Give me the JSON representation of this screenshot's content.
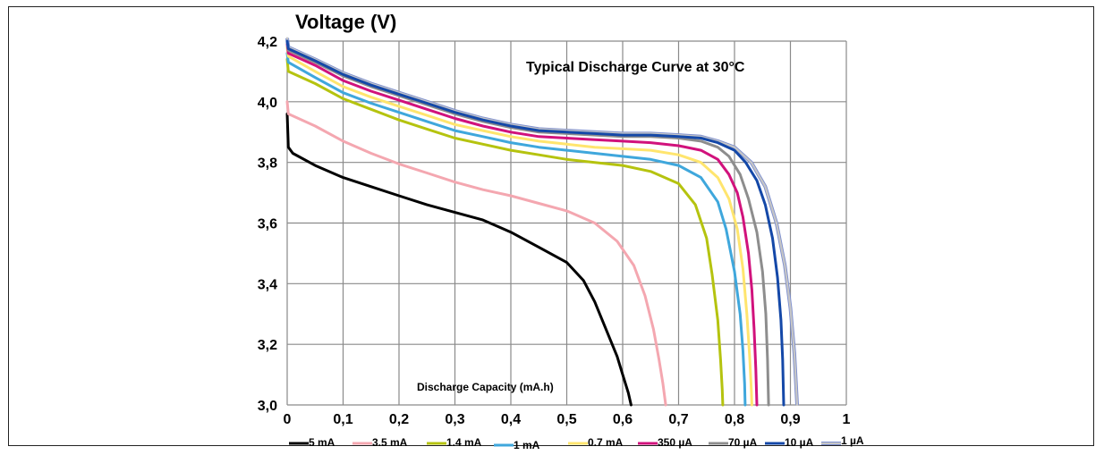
{
  "chart_data": {
    "type": "line",
    "title": "Typical Discharge Curve at 30°C",
    "ylabel": "Voltage (V)",
    "xlabel": "Discharge Capacity (mA.h)",
    "xlim": [
      0,
      1
    ],
    "ylim": [
      3.0,
      4.2
    ],
    "x_ticks": [
      "0",
      "0,1",
      "0,2",
      "0,3",
      "0,4",
      "0,5",
      "0,6",
      "0,7",
      "0,8",
      "0,9",
      "1"
    ],
    "y_ticks": [
      "3,0",
      "3,2",
      "3,4",
      "3,6",
      "3,8",
      "4,0",
      "4,2"
    ],
    "grid": true,
    "legend_position": "bottom",
    "series": [
      {
        "name": "5 mA",
        "color": "#000000",
        "points": [
          [
            0,
            3.96
          ],
          [
            0.002,
            3.85
          ],
          [
            0.01,
            3.83
          ],
          [
            0.05,
            3.79
          ],
          [
            0.1,
            3.75
          ],
          [
            0.15,
            3.72
          ],
          [
            0.2,
            3.69
          ],
          [
            0.25,
            3.66
          ],
          [
            0.3,
            3.635
          ],
          [
            0.35,
            3.61
          ],
          [
            0.4,
            3.57
          ],
          [
            0.45,
            3.52
          ],
          [
            0.5,
            3.47
          ],
          [
            0.53,
            3.41
          ],
          [
            0.55,
            3.34
          ],
          [
            0.57,
            3.25
          ],
          [
            0.59,
            3.16
          ],
          [
            0.6,
            3.1
          ],
          [
            0.61,
            3.04
          ],
          [
            0.615,
            3.0
          ]
        ]
      },
      {
        "name": "3.5 mA",
        "color": "#f4a7b0",
        "points": [
          [
            0,
            4.0
          ],
          [
            0.002,
            3.96
          ],
          [
            0.05,
            3.92
          ],
          [
            0.1,
            3.87
          ],
          [
            0.15,
            3.83
          ],
          [
            0.2,
            3.795
          ],
          [
            0.25,
            3.765
          ],
          [
            0.3,
            3.735
          ],
          [
            0.35,
            3.71
          ],
          [
            0.4,
            3.69
          ],
          [
            0.45,
            3.665
          ],
          [
            0.5,
            3.64
          ],
          [
            0.55,
            3.6
          ],
          [
            0.59,
            3.54
          ],
          [
            0.62,
            3.46
          ],
          [
            0.64,
            3.36
          ],
          [
            0.655,
            3.25
          ],
          [
            0.665,
            3.15
          ],
          [
            0.672,
            3.07
          ],
          [
            0.677,
            3.0
          ]
        ]
      },
      {
        "name": "1.4 mA",
        "color": "#b5c30f",
        "points": [
          [
            0,
            4.14
          ],
          [
            0.002,
            4.1
          ],
          [
            0.05,
            4.06
          ],
          [
            0.1,
            4.01
          ],
          [
            0.15,
            3.975
          ],
          [
            0.2,
            3.94
          ],
          [
            0.25,
            3.91
          ],
          [
            0.3,
            3.88
          ],
          [
            0.35,
            3.86
          ],
          [
            0.4,
            3.84
          ],
          [
            0.45,
            3.825
          ],
          [
            0.5,
            3.81
          ],
          [
            0.55,
            3.8
          ],
          [
            0.6,
            3.79
          ],
          [
            0.65,
            3.77
          ],
          [
            0.7,
            3.73
          ],
          [
            0.73,
            3.66
          ],
          [
            0.75,
            3.55
          ],
          [
            0.76,
            3.43
          ],
          [
            0.77,
            3.28
          ],
          [
            0.775,
            3.15
          ],
          [
            0.778,
            3.05
          ],
          [
            0.779,
            3.0
          ]
        ]
      },
      {
        "name": "1 mA",
        "color": "#3fa7dc",
        "points": [
          [
            0,
            4.16
          ],
          [
            0.002,
            4.13
          ],
          [
            0.05,
            4.08
          ],
          [
            0.1,
            4.03
          ],
          [
            0.15,
            3.995
          ],
          [
            0.2,
            3.965
          ],
          [
            0.25,
            3.935
          ],
          [
            0.3,
            3.905
          ],
          [
            0.35,
            3.885
          ],
          [
            0.4,
            3.865
          ],
          [
            0.45,
            3.85
          ],
          [
            0.5,
            3.84
          ],
          [
            0.55,
            3.83
          ],
          [
            0.6,
            3.82
          ],
          [
            0.65,
            3.81
          ],
          [
            0.7,
            3.79
          ],
          [
            0.74,
            3.75
          ],
          [
            0.77,
            3.67
          ],
          [
            0.785,
            3.58
          ],
          [
            0.8,
            3.44
          ],
          [
            0.81,
            3.3
          ],
          [
            0.815,
            3.18
          ],
          [
            0.818,
            3.07
          ],
          [
            0.819,
            3.0
          ]
        ]
      },
      {
        "name": "0.7 mA",
        "color": "#ffe56e",
        "points": [
          [
            0,
            4.18
          ],
          [
            0.002,
            4.15
          ],
          [
            0.05,
            4.1
          ],
          [
            0.1,
            4.05
          ],
          [
            0.15,
            4.015
          ],
          [
            0.2,
            3.985
          ],
          [
            0.25,
            3.955
          ],
          [
            0.3,
            3.925
          ],
          [
            0.35,
            3.905
          ],
          [
            0.4,
            3.885
          ],
          [
            0.45,
            3.87
          ],
          [
            0.5,
            3.86
          ],
          [
            0.55,
            3.85
          ],
          [
            0.6,
            3.845
          ],
          [
            0.65,
            3.84
          ],
          [
            0.7,
            3.825
          ],
          [
            0.74,
            3.8
          ],
          [
            0.77,
            3.75
          ],
          [
            0.79,
            3.68
          ],
          [
            0.805,
            3.58
          ],
          [
            0.815,
            3.45
          ],
          [
            0.822,
            3.3
          ],
          [
            0.827,
            3.16
          ],
          [
            0.83,
            3.05
          ],
          [
            0.831,
            3.0
          ]
        ]
      },
      {
        "name": "350 µA",
        "color": "#d1127c",
        "points": [
          [
            0,
            4.19
          ],
          [
            0.002,
            4.16
          ],
          [
            0.05,
            4.12
          ],
          [
            0.1,
            4.07
          ],
          [
            0.15,
            4.035
          ],
          [
            0.2,
            4.005
          ],
          [
            0.25,
            3.975
          ],
          [
            0.3,
            3.945
          ],
          [
            0.35,
            3.92
          ],
          [
            0.4,
            3.9
          ],
          [
            0.45,
            3.885
          ],
          [
            0.5,
            3.88
          ],
          [
            0.55,
            3.875
          ],
          [
            0.6,
            3.87
          ],
          [
            0.65,
            3.865
          ],
          [
            0.7,
            3.855
          ],
          [
            0.74,
            3.84
          ],
          [
            0.77,
            3.81
          ],
          [
            0.79,
            3.76
          ],
          [
            0.805,
            3.7
          ],
          [
            0.815,
            3.62
          ],
          [
            0.825,
            3.5
          ],
          [
            0.831,
            3.38
          ],
          [
            0.835,
            3.25
          ],
          [
            0.838,
            3.12
          ],
          [
            0.84,
            3.0
          ]
        ]
      },
      {
        "name": "70 µA",
        "color": "#8d8d8d",
        "points": [
          [
            0,
            4.2
          ],
          [
            0.002,
            4.17
          ],
          [
            0.05,
            4.13
          ],
          [
            0.1,
            4.085
          ],
          [
            0.15,
            4.05
          ],
          [
            0.2,
            4.02
          ],
          [
            0.25,
            3.99
          ],
          [
            0.3,
            3.96
          ],
          [
            0.35,
            3.935
          ],
          [
            0.4,
            3.915
          ],
          [
            0.45,
            3.9
          ],
          [
            0.5,
            3.895
          ],
          [
            0.55,
            3.89
          ],
          [
            0.6,
            3.885
          ],
          [
            0.65,
            3.885
          ],
          [
            0.7,
            3.88
          ],
          [
            0.74,
            3.87
          ],
          [
            0.77,
            3.85
          ],
          [
            0.79,
            3.82
          ],
          [
            0.81,
            3.76
          ],
          [
            0.825,
            3.68
          ],
          [
            0.84,
            3.57
          ],
          [
            0.85,
            3.44
          ],
          [
            0.856,
            3.3
          ],
          [
            0.859,
            3.15
          ],
          [
            0.861,
            3.0
          ]
        ]
      },
      {
        "name": "10 µA",
        "color": "#1448a8",
        "points": [
          [
            0,
            4.2
          ],
          [
            0.002,
            4.175
          ],
          [
            0.05,
            4.135
          ],
          [
            0.1,
            4.09
          ],
          [
            0.15,
            4.055
          ],
          [
            0.2,
            4.025
          ],
          [
            0.25,
            3.995
          ],
          [
            0.3,
            3.965
          ],
          [
            0.35,
            3.94
          ],
          [
            0.4,
            3.92
          ],
          [
            0.45,
            3.905
          ],
          [
            0.5,
            3.9
          ],
          [
            0.55,
            3.895
          ],
          [
            0.6,
            3.89
          ],
          [
            0.65,
            3.89
          ],
          [
            0.7,
            3.885
          ],
          [
            0.74,
            3.88
          ],
          [
            0.77,
            3.865
          ],
          [
            0.8,
            3.84
          ],
          [
            0.82,
            3.8
          ],
          [
            0.84,
            3.74
          ],
          [
            0.855,
            3.66
          ],
          [
            0.868,
            3.55
          ],
          [
            0.877,
            3.42
          ],
          [
            0.883,
            3.28
          ],
          [
            0.886,
            3.15
          ],
          [
            0.888,
            3.0
          ]
        ]
      },
      {
        "name": "1 µA",
        "color": "#c6c6c6",
        "points": [
          [
            0,
            4.21
          ],
          [
            0.002,
            4.18
          ],
          [
            0.05,
            4.14
          ],
          [
            0.1,
            4.095
          ],
          [
            0.15,
            4.06
          ],
          [
            0.2,
            4.03
          ],
          [
            0.25,
            4.0
          ],
          [
            0.3,
            3.97
          ],
          [
            0.35,
            3.945
          ],
          [
            0.4,
            3.925
          ],
          [
            0.45,
            3.91
          ],
          [
            0.5,
            3.905
          ],
          [
            0.55,
            3.9
          ],
          [
            0.6,
            3.895
          ],
          [
            0.65,
            3.895
          ],
          [
            0.7,
            3.89
          ],
          [
            0.74,
            3.885
          ],
          [
            0.77,
            3.87
          ],
          [
            0.8,
            3.85
          ],
          [
            0.83,
            3.8
          ],
          [
            0.855,
            3.72
          ],
          [
            0.875,
            3.6
          ],
          [
            0.89,
            3.46
          ],
          [
            0.9,
            3.32
          ],
          [
            0.907,
            3.17
          ],
          [
            0.912,
            3.0
          ]
        ]
      }
    ]
  }
}
